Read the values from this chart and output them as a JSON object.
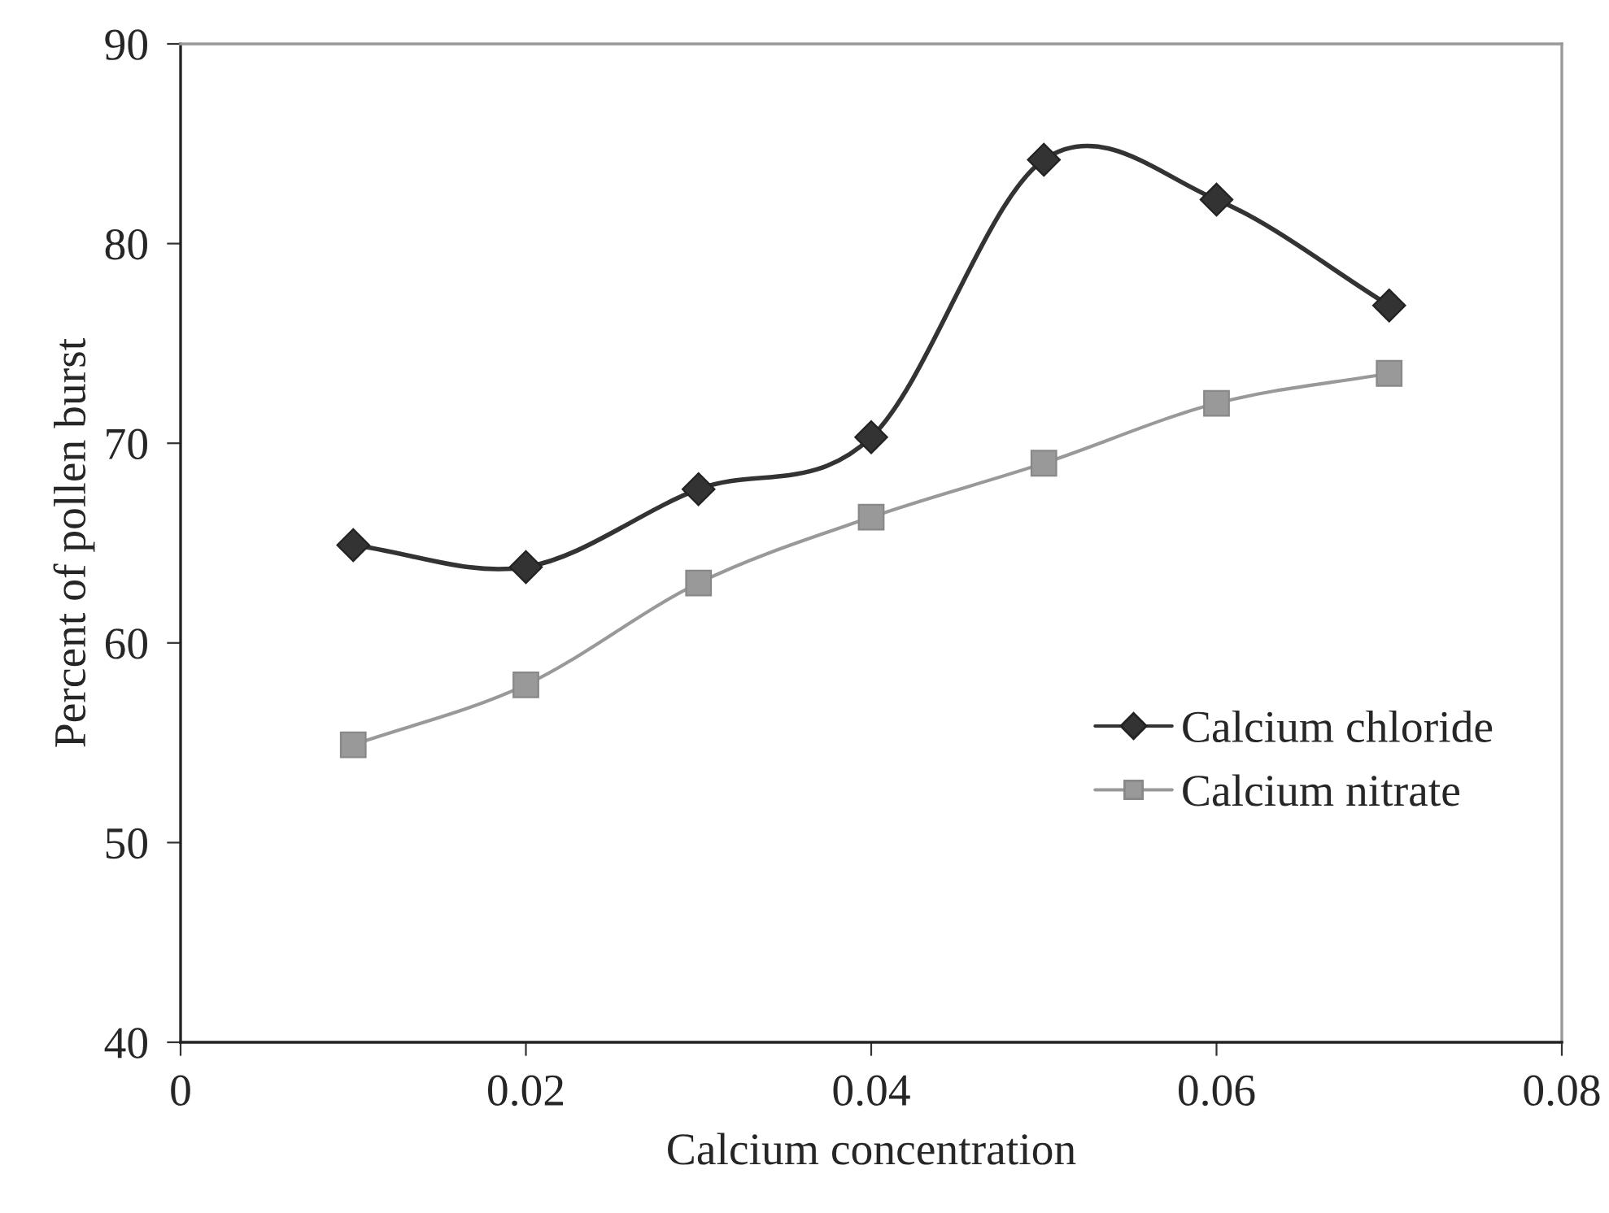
{
  "chart_data": {
    "type": "line",
    "xlabel": "Calcium concentration",
    "ylabel": "Percent of pollen burst",
    "x": [
      0.01,
      0.02,
      0.03,
      0.04,
      0.05,
      0.06,
      0.07
    ],
    "series": [
      {
        "name": "Calcium chloride",
        "color": "#333333",
        "marker": "diamond",
        "values": [
          64.9,
          63.8,
          67.7,
          70.3,
          84.2,
          82.2,
          76.9
        ]
      },
      {
        "name": "Calcium nitrate",
        "color": "#999999",
        "marker": "square",
        "values": [
          54.9,
          57.9,
          63.0,
          66.3,
          69.0,
          72.0,
          73.5
        ]
      }
    ],
    "xlim": [
      0,
      0.08
    ],
    "xticks": [
      0,
      {
        "value": 0.02,
        "label": "0.02"
      },
      {
        "value": 0.04,
        "label": "0.04"
      },
      {
        "value": 0.06,
        "label": "0.06"
      },
      {
        "value": 0.08,
        "label": "0.08"
      }
    ],
    "ylim": [
      40,
      90
    ],
    "yticks": [
      40,
      50,
      60,
      70,
      80,
      90
    ],
    "grid": false,
    "legend": "right",
    "line_style": "solid"
  }
}
